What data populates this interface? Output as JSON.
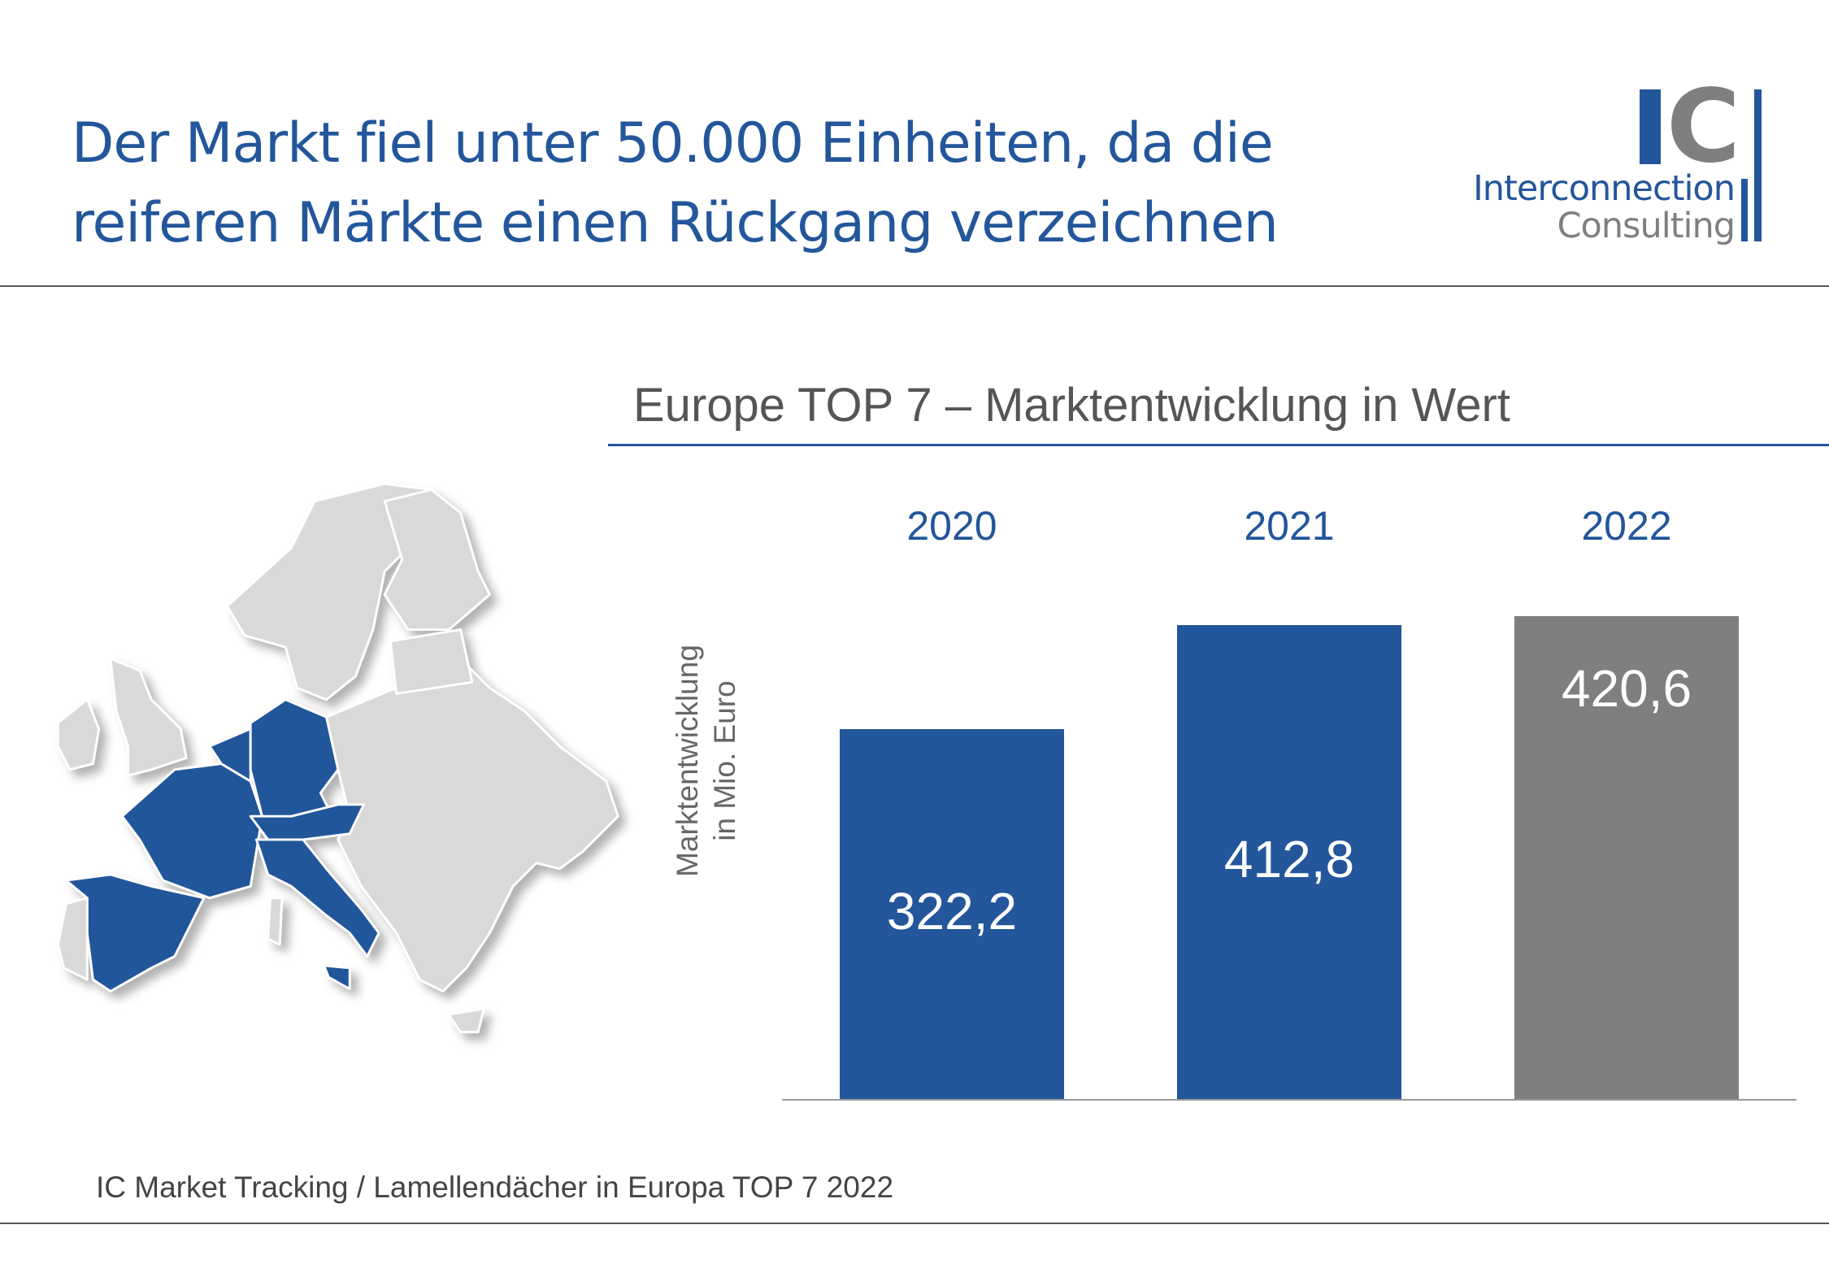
{
  "header": {
    "title_line1": "Der Markt fiel unter 50.000 Einheiten, da die",
    "title_line2": "reiferen Märkte einen Rückgang verzeichnen"
  },
  "logo": {
    "mark": "IC",
    "line1": "Interconnection",
    "line2": "Consulting"
  },
  "colors": {
    "brand_blue": "#23569b",
    "gray": "#7f7f7f",
    "map_gray": "#d9d9d9"
  },
  "chart_data": {
    "type": "bar",
    "title": "Europe TOP 7 – Marktentwicklung in Wert",
    "ylabel_line1": "Marktentwicklung",
    "ylabel_line2": "in Mio. Euro",
    "categories": [
      "2020",
      "2021",
      "2022"
    ],
    "values": [
      322.2,
      412.8,
      420.6
    ],
    "value_labels": [
      "322,2",
      "412,8",
      "420,6"
    ],
    "bar_colors": [
      "#23569b",
      "#23569b",
      "#7f7f7f"
    ],
    "ylim": [
      0,
      450
    ],
    "grid": false
  },
  "map": {
    "highlighted": [
      "France",
      "Germany",
      "Benelux",
      "Switzerland",
      "Austria",
      "Italy",
      "Spain"
    ]
  },
  "footer": {
    "source": "IC Market Tracking / Lamellendächer in Europa TOP 7 2022"
  }
}
